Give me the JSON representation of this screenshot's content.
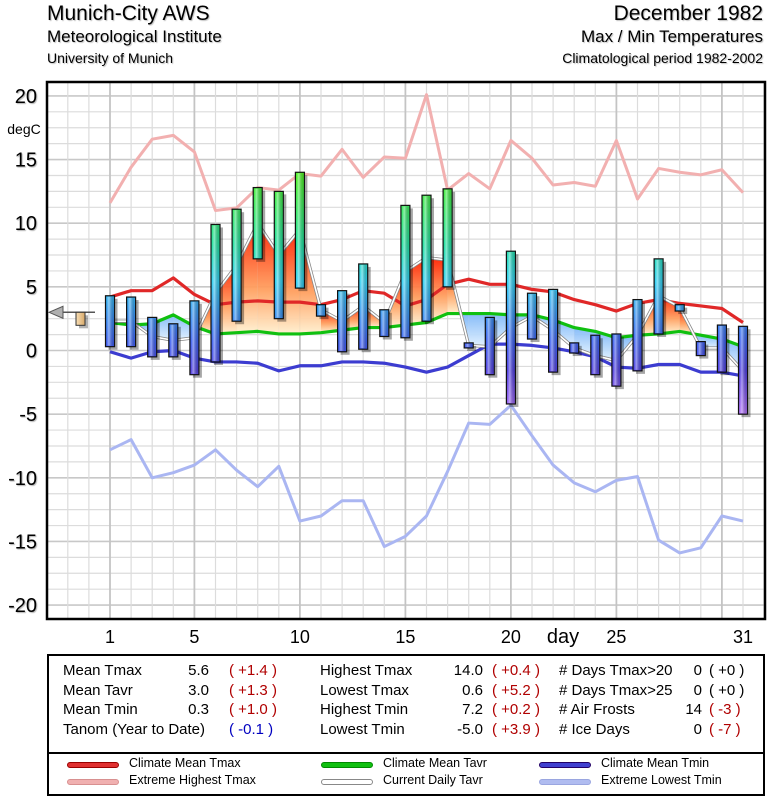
{
  "header": {
    "station": "Munich-City AWS",
    "institute": "Meteorological Institute",
    "university": "University of Munich",
    "month": "December 1982",
    "subtitle": "Max / Min Temperatures",
    "period": "Climatological period 1982-2002"
  },
  "chart_data": {
    "type": "bar",
    "title": "Max / Min Temperatures",
    "xlabel": "day",
    "ylabel": "degC",
    "ylim": [
      -20,
      20
    ],
    "xlim": [
      -2.5,
      32
    ],
    "yticks": [
      "20",
      "15",
      "10",
      "5",
      "0",
      "-5",
      "-10",
      "-15",
      "-20"
    ],
    "ytick_values": [
      20,
      15,
      10,
      5,
      0,
      -5,
      -10,
      -15,
      -20
    ],
    "xticks": [
      "1",
      "5",
      "10",
      "15",
      "20",
      "25",
      "31"
    ],
    "xtick_values": [
      1,
      5,
      10,
      15,
      20,
      25,
      31
    ],
    "grid": true,
    "days": [
      1,
      2,
      3,
      4,
      5,
      6,
      7,
      8,
      9,
      10,
      11,
      12,
      13,
      14,
      15,
      16,
      17,
      18,
      19,
      20,
      21,
      22,
      23,
      24,
      25,
      26,
      27,
      28,
      29,
      30,
      31
    ],
    "daily_tmax": [
      4.3,
      4.2,
      2.6,
      2.1,
      3.9,
      9.9,
      11.1,
      12.8,
      12.5,
      14.0,
      3.6,
      4.7,
      6.8,
      3.2,
      11.4,
      12.2,
      12.7,
      0.6,
      2.6,
      7.8,
      4.5,
      4.8,
      0.6,
      1.2,
      1.3,
      4.0,
      7.2,
      3.6,
      0.7,
      2.0,
      1.9
    ],
    "daily_tmin": [
      0.3,
      0.3,
      -0.5,
      -0.5,
      -1.9,
      -0.9,
      2.3,
      7.2,
      2.5,
      4.9,
      2.7,
      -0.1,
      0.1,
      1.1,
      1.0,
      2.3,
      5.0,
      0.2,
      -1.9,
      -4.2,
      0.9,
      -1.7,
      -0.2,
      -1.9,
      -2.8,
      -1.6,
      1.3,
      3.1,
      -0.4,
      -1.7,
      -5.0
    ],
    "current_daily_tavr": [
      2.3,
      2.3,
      1.1,
      0.8,
      1.0,
      4.5,
      6.7,
      10.0,
      7.5,
      9.5,
      3.2,
      2.3,
      3.5,
      2.2,
      6.2,
      7.3,
      7.1,
      0.4,
      0.3,
      1.8,
      2.7,
      1.6,
      0.2,
      -0.4,
      -0.8,
      1.2,
      4.3,
      3.4,
      0.2,
      0.2,
      -1.6
    ],
    "series": [
      {
        "name": "Climate Mean Tmax",
        "color": "#e03030",
        "values": [
          4.2,
          4.7,
          4.7,
          5.7,
          4.4,
          3.6,
          3.8,
          3.9,
          3.8,
          3.8,
          3.6,
          4.0,
          4.7,
          4.5,
          3.5,
          4.0,
          5.2,
          5.6,
          5.2,
          5.2,
          4.8,
          4.6,
          4.0,
          3.6,
          3.1,
          3.7,
          4.0,
          3.7,
          3.5,
          3.3,
          2.2
        ]
      },
      {
        "name": "Climate Mean Tavr",
        "color": "#00b000",
        "values": [
          2.2,
          2.0,
          2.1,
          2.8,
          1.9,
          1.3,
          1.4,
          1.5,
          1.3,
          1.3,
          1.4,
          1.6,
          1.8,
          1.8,
          2.0,
          2.2,
          2.9,
          2.9,
          2.9,
          2.8,
          2.8,
          2.4,
          1.8,
          1.5,
          1.0,
          1.2,
          1.3,
          1.5,
          1.2,
          0.9,
          0.3
        ]
      },
      {
        "name": "Climate Mean Tmin",
        "color": "#4040d0",
        "values": [
          -0.1,
          -0.6,
          -0.1,
          0.0,
          -0.6,
          -0.9,
          -0.9,
          -1.0,
          -1.6,
          -1.2,
          -1.2,
          -0.9,
          -0.9,
          -1.0,
          -1.3,
          -1.7,
          -1.3,
          -0.4,
          0.5,
          0.5,
          0.4,
          0.2,
          -0.1,
          -0.5,
          -1.3,
          -1.4,
          -1.1,
          -1.1,
          -1.7,
          -1.7,
          -2.0
        ]
      },
      {
        "name": "Extreme Highest Tmax",
        "color": "#f0b0b0",
        "values": [
          11.6,
          14.4,
          16.6,
          16.9,
          15.6,
          11.0,
          11.2,
          12.8,
          12.6,
          13.9,
          13.7,
          15.8,
          13.6,
          15.2,
          15.1,
          20.1,
          12.6,
          13.9,
          12.7,
          16.5,
          15.1,
          13.0,
          13.2,
          12.9,
          16.5,
          11.9,
          14.3,
          14.0,
          13.8,
          14.2,
          12.4
        ]
      },
      {
        "name": "Extreme Lowest Tmin",
        "color": "#a8b4f0",
        "values": [
          -7.8,
          -7.0,
          -10.0,
          -9.6,
          -9.0,
          -7.8,
          -9.4,
          -10.7,
          -9.1,
          -13.4,
          -13.0,
          -11.8,
          -11.8,
          -15.4,
          -14.6,
          -13.0,
          -9.5,
          -5.7,
          -5.8,
          -4.3,
          -6.7,
          -9.0,
          -10.4,
          -11.1,
          -10.2,
          -9.9,
          -14.9,
          -15.9,
          -15.5,
          -13.0,
          -13.4
        ]
      },
      {
        "name": "Current Daily Tavr",
        "color": "#b0b0b0",
        "values": []
      }
    ],
    "year_to_date_marker": {
      "label": "Tanom (Year to Date)",
      "value": -0.1,
      "reference": 3.0
    }
  },
  "stats": {
    "col1": [
      {
        "label": "Mean Tmax",
        "value": "5.6",
        "anom": "( +1.4 )",
        "anom_color": "red"
      },
      {
        "label": "Mean Tavr",
        "value": "3.0",
        "anom": "( +1.3 )",
        "anom_color": "red"
      },
      {
        "label": "Mean Tmin",
        "value": "0.3",
        "anom": "( +1.0 )",
        "anom_color": "red"
      },
      {
        "label": "Tanom (Year to Date)",
        "value": "",
        "anom": "( -0.1 )",
        "anom_color": "blue"
      }
    ],
    "col2": [
      {
        "label": "Highest Tmax",
        "value": "14.0",
        "anom": "( +0.4 )",
        "anom_color": "red"
      },
      {
        "label": "Lowest Tmax",
        "value": "0.6",
        "anom": "( +5.2 )",
        "anom_color": "red"
      },
      {
        "label": "Highest Tmin",
        "value": "7.2",
        "anom": "( +0.2 )",
        "anom_color": "red"
      },
      {
        "label": "Lowest Tmin",
        "value": "-5.0",
        "anom": "( +3.9 )",
        "anom_color": "red"
      }
    ],
    "col3": [
      {
        "label": "# Days Tmax>20",
        "value": "0",
        "anom": "( +0 )",
        "anom_color": "black"
      },
      {
        "label": "# Days Tmax>25",
        "value": "0",
        "anom": "( +0 )",
        "anom_color": "black"
      },
      {
        "label": "# Air Frosts",
        "value": "14",
        "anom": "( -3 )",
        "anom_color": "red"
      },
      {
        "label": "# Ice Days",
        "value": "0",
        "anom": "( -7 )",
        "anom_color": "red"
      }
    ]
  },
  "legend": [
    {
      "label": "Climate Mean Tmax",
      "color": "#e03030"
    },
    {
      "label": "Extreme Highest Tmax",
      "color": "#f0b0b0"
    },
    {
      "label": "Climate Mean Tavr",
      "color": "#10c010"
    },
    {
      "label": "Current Daily Tavr",
      "color": "#ffffff"
    },
    {
      "label": "Climate Mean Tmin",
      "color": "#4040d0"
    },
    {
      "label": "Extreme Lowest Tmin",
      "color": "#b0bcf0"
    }
  ]
}
